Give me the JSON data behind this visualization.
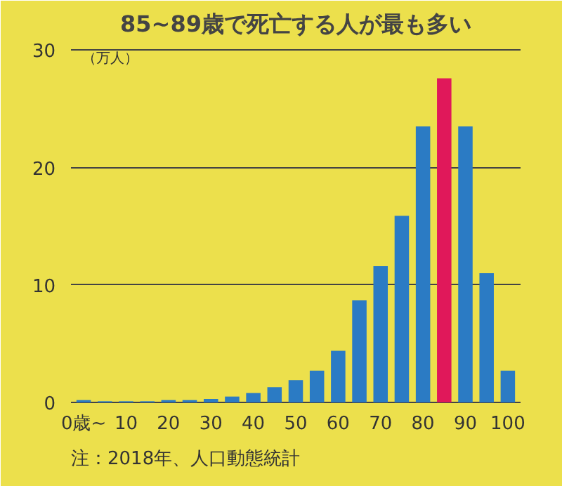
{
  "chart_data": {
    "type": "bar",
    "title": "85~89歳で死亡する人が最も多い",
    "ylabel": "（万人）",
    "x": [
      0,
      5,
      10,
      15,
      20,
      25,
      30,
      35,
      40,
      45,
      50,
      55,
      60,
      65,
      70,
      75,
      80,
      85,
      90,
      95,
      100
    ],
    "values": [
      0.2,
      0.1,
      0.1,
      0.1,
      0.2,
      0.2,
      0.3,
      0.5,
      0.8,
      1.3,
      1.9,
      2.7,
      4.4,
      8.7,
      11.6,
      15.9,
      23.5,
      27.6,
      23.5,
      11.0,
      2.7
    ],
    "colors": [
      "#2b7bc4",
      "#2b7bc4",
      "#2b7bc4",
      "#2b7bc4",
      "#2b7bc4",
      "#2b7bc4",
      "#2b7bc4",
      "#2b7bc4",
      "#2b7bc4",
      "#2b7bc4",
      "#2b7bc4",
      "#2b7bc4",
      "#2b7bc4",
      "#2b7bc4",
      "#2b7bc4",
      "#2b7bc4",
      "#2b7bc4",
      "#e0185a",
      "#2b7bc4",
      "#2b7bc4",
      "#2b7bc4"
    ],
    "xlim": [
      -3,
      103
    ],
    "xticks": [
      {
        "value": 0,
        "label": "0歳~"
      },
      10,
      20,
      30,
      40,
      50,
      60,
      70,
      80,
      90,
      100
    ],
    "ylim": [
      0,
      30.5
    ],
    "yticks": [
      0,
      10,
      20,
      30
    ],
    "grid": "y",
    "annotations": [
      "注：2018年、人口動態統計"
    ]
  }
}
